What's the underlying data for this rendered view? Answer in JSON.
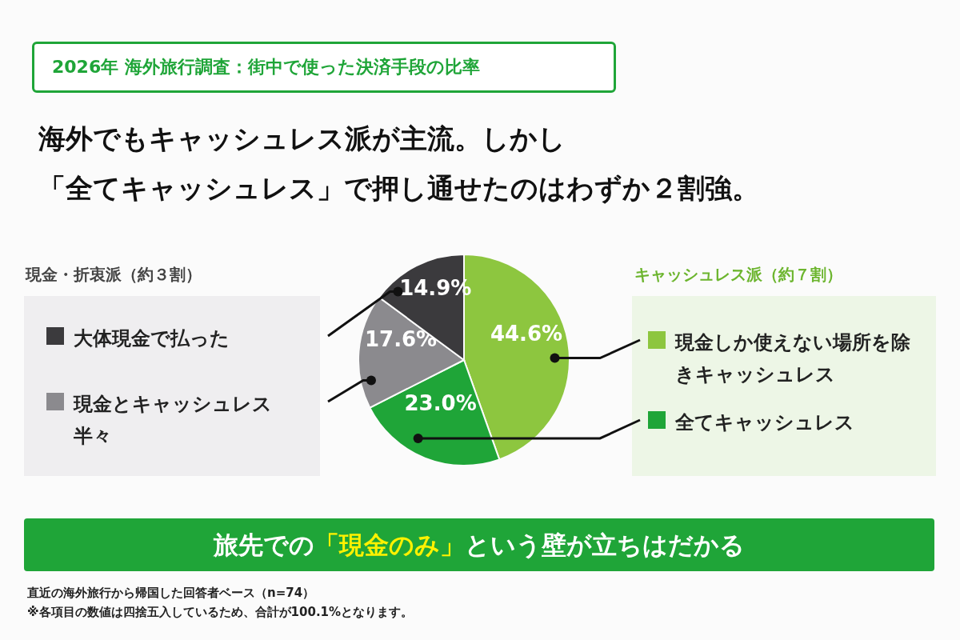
{
  "chart_data": {
    "type": "pie",
    "title": "2026年 海外旅行調査：街中で使った決済手段の比率",
    "subtitle": "海外でもキャッシュレス派が主流。しかし",
    "categories": [
      "現金しか使えない場所を除きキャッシュレス",
      "全てキャッシュレス",
      "現金とキャッシュレス半々",
      "大体現金で払った"
    ],
    "values": [
      44.6,
      23.0,
      17.6,
      14.9
    ],
    "colors": [
      "#8dc63f",
      "#1fa538",
      "#8b8a8e",
      "#3b3a3d"
    ],
    "value_labels": [
      "44.6%",
      "23.0%",
      "17.6%",
      "14.9%"
    ],
    "legend": "right",
    "annotations": [
      "「全てキャッシュレス」で押し通せたのはわずか２割強。",
      "現金・折衷派（約３割）",
      "キャッシュレス派（約７割）",
      "旅先での「現金のみ」という壁が立ちはだかる",
      "直近の海外旅行から帰国した回答者ベース（n=74）",
      "※各項目の数値は四捨五入しているため、合計が100.1%となります。"
    ]
  }
}
